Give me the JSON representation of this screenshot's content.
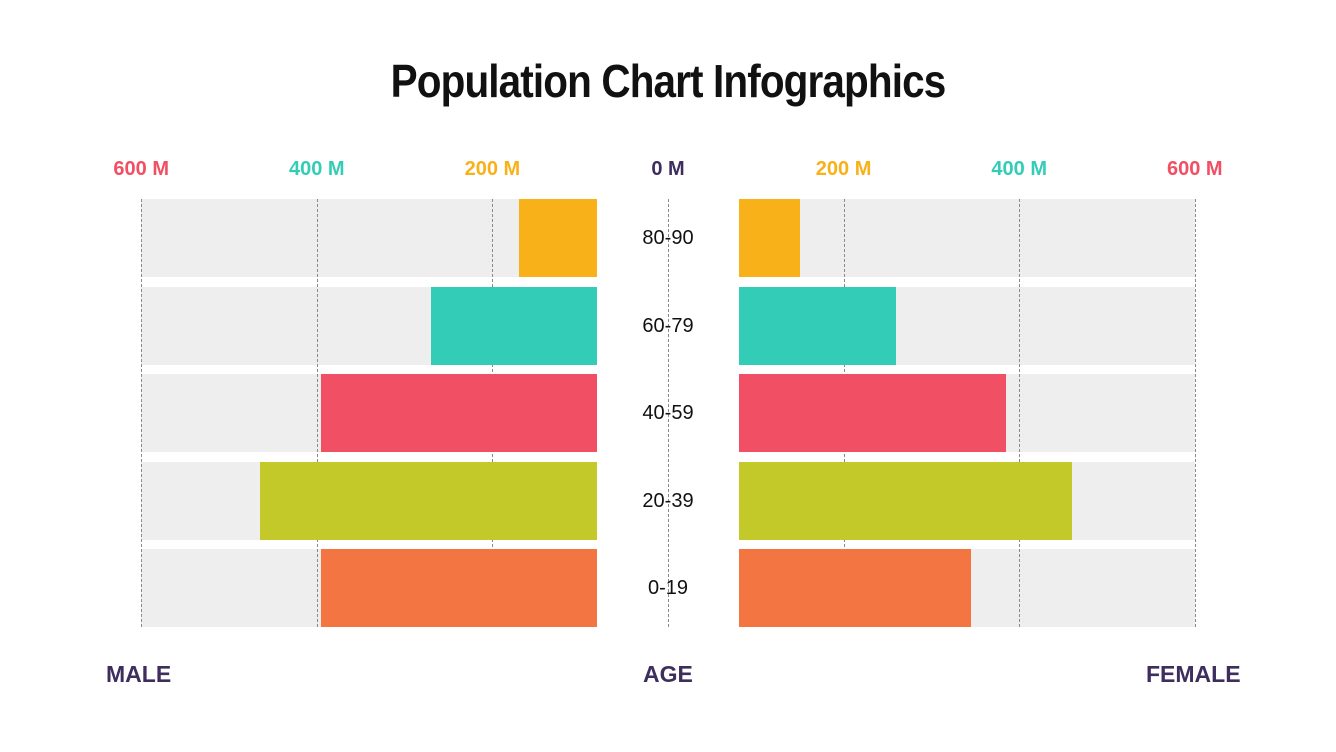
{
  "title": "Population Chart Infographics",
  "chart_data": {
    "type": "bar",
    "orientation": "horizontal",
    "layout": "population-pyramid",
    "categories": [
      "80-90",
      "60-79",
      "40-59",
      "20-39",
      "0-19"
    ],
    "series": [
      {
        "name": "MALE",
        "values": [
          170,
          270,
          395,
          465,
          395
        ]
      },
      {
        "name": "FEMALE",
        "values": [
          150,
          260,
          385,
          460,
          345
        ]
      }
    ],
    "bar_colors": [
      "#F9B11A",
      "#33CDB7",
      "#F04F64",
      "#C3C928",
      "#F27542"
    ],
    "x_unit": "M",
    "xlim": [
      0,
      600
    ],
    "ticks": [
      {
        "value": 0,
        "label": "0 M",
        "color": "#3D2E5E"
      },
      {
        "value": 200,
        "label": "200 M",
        "color": "#F9B11A"
      },
      {
        "value": 400,
        "label": "400 M",
        "color": "#33CDB7"
      },
      {
        "value": 600,
        "label": "600 M",
        "color": "#F04F64"
      }
    ],
    "xlabel_left": "MALE",
    "xlabel_center": "AGE",
    "xlabel_right": "FEMALE",
    "grid": true
  }
}
